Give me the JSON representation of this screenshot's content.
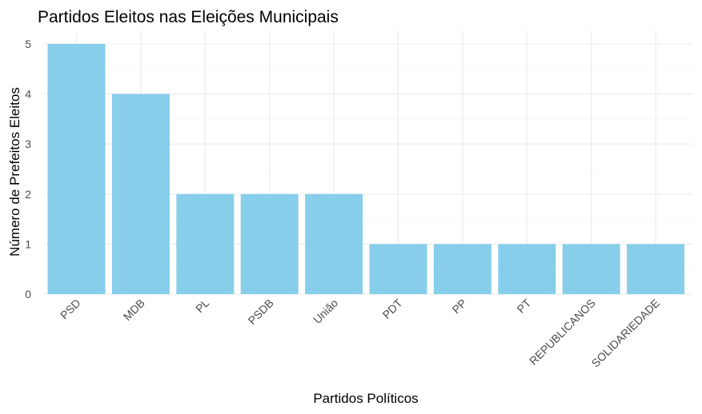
{
  "chart_data": {
    "type": "bar",
    "title": "Partidos Eleitos nas Eleições Municipais",
    "xlabel": "Partidos Políticos",
    "ylabel": "Número de Prefeitos Eleitos",
    "categories": [
      "PSD",
      "MDB",
      "PL",
      "PSDB",
      "União",
      "PDT",
      "PP",
      "PT",
      "REPUBLICANOS",
      "SOLIDARIEDADE"
    ],
    "values": [
      5,
      4,
      2,
      2,
      2,
      1,
      1,
      1,
      1,
      1
    ],
    "ylim": [
      0,
      5
    ],
    "yticks": [
      0,
      1,
      2,
      3,
      4,
      5
    ],
    "grid": true,
    "legend": "none",
    "bar_color": "#87CEEB"
  }
}
